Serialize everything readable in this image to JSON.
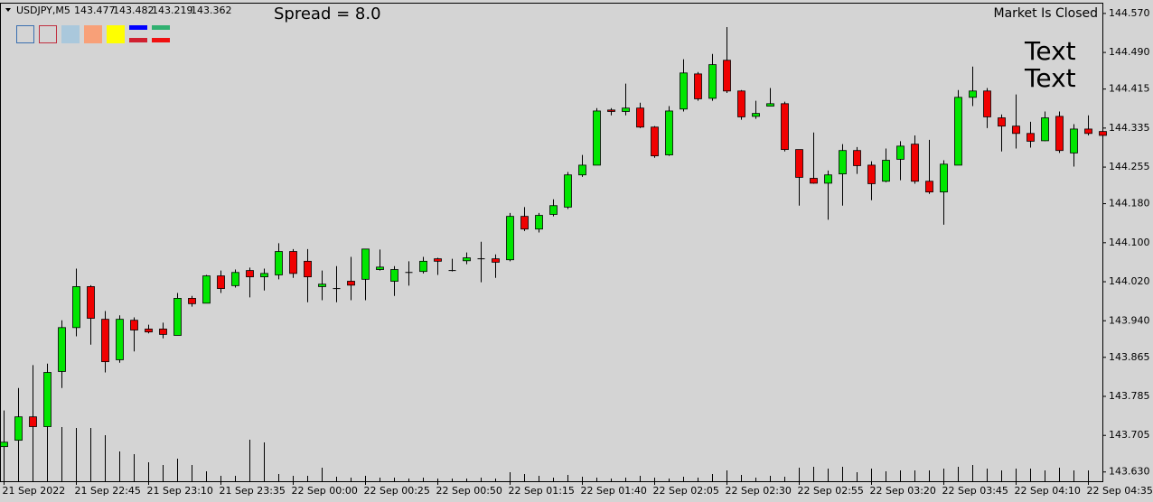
{
  "header": {
    "symbol": "USDJPY,M5",
    "quote": [
      143.477,
      143.482,
      143.219,
      143.362
    ],
    "spread": "Spread = 8.0",
    "status": "Market Is Closed",
    "notes": [
      "Text",
      "Text"
    ]
  },
  "chart_data": {
    "type": "candlestick",
    "categories": [
      "21 Sep 2022",
      null,
      null,
      null,
      null,
      "21 Sep 22:45",
      null,
      null,
      null,
      null,
      "21 Sep 23:10",
      null,
      null,
      null,
      null,
      "21 Sep 23:35",
      null,
      null,
      null,
      null,
      "22 Sep 00:00",
      null,
      null,
      null,
      null,
      "22 Sep 00:25",
      null,
      null,
      null,
      null,
      "22 Sep 00:50",
      null,
      null,
      null,
      null,
      "22 Sep 01:15",
      null,
      null,
      null,
      null,
      "22 Sep 01:40",
      null,
      null,
      null,
      null,
      "22 Sep 02:05",
      null,
      null,
      null,
      null,
      "22 Sep 02:30",
      null,
      null,
      null,
      null,
      "22 Sep 02:55",
      null,
      null,
      null,
      null,
      "22 Sep 03:20",
      null,
      null,
      null,
      null,
      "22 Sep 03:45",
      null,
      null,
      null,
      null,
      "22 Sep 04:10",
      null,
      null,
      null,
      null,
      "22 Sep 04:35",
      null
    ],
    "open": [
      143.682,
      143.695,
      143.743,
      143.723,
      143.836,
      143.926,
      144.01,
      143.943,
      143.86,
      143.941,
      143.923,
      143.923,
      143.91,
      143.986,
      143.976,
      144.032,
      144.012,
      144.043,
      144.03,
      144.034,
      144.082,
      144.062,
      144.01,
      144.006,
      144.021,
      144.025,
      144.045,
      144.021,
      144.039,
      144.041,
      144.067,
      144.043,
      144.063,
      144.067,
      144.067,
      144.065,
      144.154,
      144.128,
      144.158,
      144.173,
      144.239,
      144.259,
      144.372,
      144.369,
      144.376,
      144.337,
      144.28,
      144.374,
      144.446,
      144.396,
      144.474,
      144.411,
      144.359,
      144.38,
      144.385,
      144.291,
      144.232,
      144.222,
      144.241,
      144.289,
      144.259,
      144.226,
      144.271,
      144.302,
      144.226,
      144.204,
      144.259,
      144.398,
      144.411,
      144.356,
      144.339,
      144.324,
      144.309,
      144.359,
      144.284,
      144.333,
      144.328
    ],
    "high": [
      143.756,
      143.802,
      143.849,
      143.852,
      143.941,
      144.047,
      144.013,
      143.96,
      143.951,
      143.947,
      143.932,
      143.936,
      143.997,
      143.991,
      144.034,
      144.043,
      144.045,
      144.049,
      144.047,
      144.099,
      144.087,
      144.087,
      144.043,
      144.052,
      144.071,
      144.087,
      144.086,
      144.052,
      144.062,
      144.071,
      144.069,
      144.067,
      144.08,
      144.102,
      144.076,
      144.161,
      144.173,
      144.161,
      144.189,
      144.245,
      144.28,
      144.376,
      144.376,
      144.426,
      144.387,
      144.339,
      144.38,
      144.476,
      144.45,
      144.487,
      144.542,
      144.413,
      144.391,
      144.417,
      144.389,
      144.291,
      144.326,
      144.248,
      144.302,
      144.296,
      144.267,
      144.293,
      144.308,
      144.32,
      144.311,
      144.269,
      144.413,
      144.461,
      144.417,
      144.363,
      144.404,
      144.348,
      144.369,
      144.369,
      144.343,
      144.361,
      144.352
    ],
    "low": [
      143.673,
      143.645,
      143.71,
      143.723,
      143.802,
      143.908,
      143.891,
      143.834,
      143.854,
      143.877,
      143.914,
      143.904,
      143.91,
      143.969,
      143.976,
      143.997,
      144.008,
      143.988,
      144.002,
      144.025,
      144.028,
      143.978,
      143.982,
      143.978,
      143.982,
      143.982,
      144.043,
      143.991,
      144.012,
      144.037,
      144.034,
      144.041,
      144.056,
      144.019,
      144.028,
      144.062,
      144.124,
      144.121,
      144.154,
      144.169,
      144.235,
      144.259,
      144.361,
      144.361,
      144.335,
      144.274,
      144.278,
      144.369,
      144.391,
      144.391,
      144.407,
      144.352,
      144.354,
      144.38,
      144.287,
      144.176,
      144.221,
      144.147,
      144.176,
      144.241,
      144.187,
      144.224,
      144.228,
      144.221,
      144.2,
      144.137,
      144.259,
      144.38,
      144.335,
      144.287,
      144.293,
      144.295,
      144.308,
      144.284,
      144.256,
      144.32,
      144.284
    ],
    "close": [
      143.691,
      143.743,
      143.723,
      143.834,
      143.926,
      144.01,
      143.945,
      143.856,
      143.943,
      143.921,
      143.917,
      143.912,
      143.986,
      143.975,
      144.032,
      144.006,
      144.039,
      144.03,
      144.037,
      144.082,
      144.037,
      144.03,
      144.015,
      144.006,
      144.013,
      144.087,
      144.05,
      144.045,
      144.039,
      144.062,
      144.062,
      144.043,
      144.069,
      144.067,
      144.06,
      144.154,
      144.128,
      144.156,
      144.176,
      144.239,
      144.259,
      144.37,
      144.369,
      144.376,
      144.337,
      144.278,
      144.37,
      144.448,
      144.395,
      144.465,
      144.411,
      144.358,
      144.365,
      144.385,
      144.291,
      144.234,
      144.222,
      144.239,
      144.289,
      144.258,
      144.221,
      144.269,
      144.298,
      144.226,
      144.204,
      144.261,
      144.398,
      144.411,
      144.358,
      144.339,
      144.324,
      144.308,
      144.356,
      144.289,
      144.333,
      144.324,
      144.32
    ],
    "volumes": [
      78,
      70,
      60,
      65,
      60,
      59,
      59,
      51,
      33,
      30,
      21,
      18,
      25,
      18,
      11,
      6,
      6,
      46,
      43,
      8,
      6,
      6,
      15,
      5,
      4,
      6,
      4,
      4,
      3,
      4,
      3,
      3,
      3,
      4,
      3,
      10,
      8,
      6,
      4,
      7,
      5,
      4,
      3,
      4,
      6,
      4,
      3,
      5,
      4,
      8,
      12,
      7,
      4,
      6,
      5,
      15,
      16,
      14,
      16,
      10,
      14,
      11,
      12,
      12,
      12,
      14,
      16,
      18,
      14,
      12,
      14,
      14,
      12,
      15,
      12,
      12,
      10
    ],
    "vlim": [
      0,
      150
    ],
    "up_color": "#00e600",
    "down_color": "#f00000",
    "volume_color": "#000000",
    "ylim": [
      143.611,
      144.592
    ],
    "yticks": [
      {
        "value": 143.63,
        "label": "143.630"
      },
      {
        "value": 143.705,
        "label": "143.705"
      },
      143.785,
      143.865,
      {
        "value": 143.94,
        "label": "143.940"
      },
      {
        "value": 144.02,
        "label": "144.020"
      },
      {
        "value": 144.1,
        "label": "144.100"
      },
      {
        "value": 144.18,
        "label": "144.180"
      },
      144.255,
      144.335,
      144.415,
      {
        "value": 144.49,
        "label": "144.490"
      },
      {
        "value": 144.57,
        "label": "144.570"
      }
    ]
  }
}
